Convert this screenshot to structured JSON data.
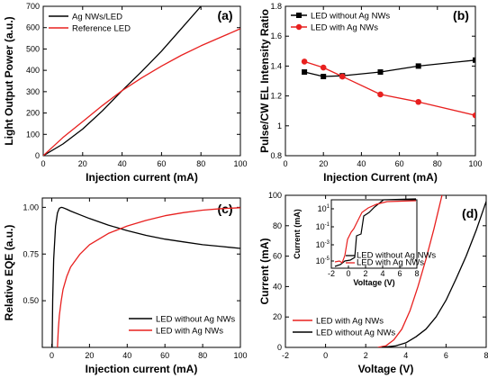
{
  "chart_data": [
    {
      "type": "line",
      "panel_label": "(a)",
      "xlabel": "Injection current (mA)",
      "ylabel": "Light Output Power (a.u.)",
      "xlim": [
        0,
        100
      ],
      "ylim": [
        0,
        700
      ],
      "xticks": [
        0,
        20,
        40,
        60,
        80,
        100
      ],
      "yticks": [
        0,
        100,
        200,
        300,
        400,
        500,
        600,
        700
      ],
      "legend_position": "top-left",
      "series": [
        {
          "name": "Ag NWs/LED",
          "color": "#000000",
          "x": [
            0,
            10,
            20,
            30,
            40,
            50,
            60,
            70,
            80
          ],
          "y": [
            0,
            55,
            125,
            210,
            305,
            395,
            490,
            595,
            700
          ]
        },
        {
          "name": "Reference LED",
          "color": "#e8201f",
          "x": [
            0,
            10,
            20,
            30,
            40,
            50,
            60,
            70,
            80,
            90,
            100
          ],
          "y": [
            0,
            85,
            160,
            235,
            305,
            365,
            420,
            470,
            515,
            555,
            595
          ]
        }
      ]
    },
    {
      "type": "line",
      "panel_label": "(b)",
      "xlabel": "Injection Current (mA)",
      "ylabel": "Pulse/CW EL Intensity Ratio",
      "xlim": [
        0,
        100
      ],
      "ylim": [
        0.8,
        1.8
      ],
      "xticks": [
        0,
        20,
        40,
        60,
        80,
        100
      ],
      "yticks": [
        0.8,
        1.0,
        1.2,
        1.4,
        1.6,
        1.8
      ],
      "legend_position": "top-left",
      "series": [
        {
          "name": "LED without Ag NWs",
          "color": "#000000",
          "marker": "square",
          "x": [
            10,
            20,
            30,
            50,
            70,
            100
          ],
          "y": [
            1.36,
            1.33,
            1.335,
            1.36,
            1.4,
            1.44
          ]
        },
        {
          "name": "LED with Ag NWs",
          "color": "#e8201f",
          "marker": "circle",
          "x": [
            10,
            20,
            30,
            50,
            70,
            100
          ],
          "y": [
            1.43,
            1.39,
            1.33,
            1.21,
            1.16,
            1.07
          ]
        }
      ]
    },
    {
      "type": "line",
      "panel_label": "(c)",
      "xlabel": "Injection current (mA)",
      "ylabel": "Relative EQE (a.u.)",
      "xlim": [
        -5,
        100
      ],
      "ylim": [
        0.25,
        1.05
      ],
      "xticks": [
        0,
        20,
        40,
        60,
        80,
        100
      ],
      "yticks": [
        0.5,
        0.75,
        1.0
      ],
      "ytick_labels": [
        "0.50",
        "0.75",
        "1.00"
      ],
      "legend_position": "bottom-center",
      "series": [
        {
          "name": "LED without Ag NWs",
          "color": "#000000",
          "x": [
            0.2,
            0.5,
            1,
            2,
            3,
            4,
            5,
            6,
            8,
            10,
            15,
            20,
            30,
            40,
            50,
            60,
            70,
            80,
            90,
            100
          ],
          "y": [
            0.25,
            0.5,
            0.72,
            0.9,
            0.97,
            0.995,
            1.0,
            0.998,
            0.99,
            0.98,
            0.96,
            0.94,
            0.905,
            0.875,
            0.85,
            0.83,
            0.815,
            0.8,
            0.79,
            0.78
          ]
        },
        {
          "name": "LED with Ag NWs",
          "color": "#e8201f",
          "x": [
            3,
            3.5,
            4,
            5,
            6,
            8,
            10,
            15,
            20,
            30,
            40,
            50,
            60,
            70,
            80,
            90,
            100
          ],
          "y": [
            0.25,
            0.35,
            0.42,
            0.5,
            0.56,
            0.63,
            0.68,
            0.75,
            0.8,
            0.86,
            0.9,
            0.93,
            0.955,
            0.972,
            0.985,
            0.993,
            0.998
          ]
        }
      ]
    },
    {
      "type": "line",
      "panel_label": "(d)",
      "xlabel": "Voltage (V)",
      "ylabel": "Current (mA)",
      "xlim": [
        -2,
        8
      ],
      "ylim": [
        0,
        100
      ],
      "xticks": [
        -2,
        0,
        2,
        4,
        6,
        8
      ],
      "yticks": [
        0,
        20,
        40,
        60,
        80,
        100
      ],
      "legend_position": "bottom-left",
      "series": [
        {
          "name": "LED with Ag NWs",
          "color": "#e8201f",
          "x": [
            2.6,
            3.0,
            3.4,
            3.8,
            4.2,
            4.6,
            5.0,
            5.4,
            5.8
          ],
          "y": [
            0,
            1,
            5,
            12,
            24,
            40,
            58,
            78,
            100
          ]
        },
        {
          "name": "LED without Ag NWs",
          "color": "#000000",
          "x": [
            2.8,
            3.5,
            4.0,
            4.5,
            5.0,
            5.5,
            6.0,
            6.5,
            7.0,
            7.5,
            8.0
          ],
          "y": [
            0,
            1,
            3,
            7,
            12,
            20,
            31,
            45,
            60,
            77,
            96
          ]
        }
      ],
      "inset": {
        "type": "line",
        "xlabel": "Voltage (V)",
        "ylabel": "Current (mA)",
        "scale": "log-y",
        "xlim": [
          -2,
          8
        ],
        "xticks": [
          -2,
          0,
          2,
          4,
          6,
          8
        ],
        "ytick_labels": [
          "10^1",
          "10^-1",
          "10^-3",
          "10^-5"
        ],
        "legend_position": "bottom-right",
        "series": [
          {
            "name": "LED without Ag NWs",
            "color": "#000000"
          },
          {
            "name": "LED with Ag NWs",
            "color": "#e8201f"
          }
        ]
      }
    }
  ]
}
